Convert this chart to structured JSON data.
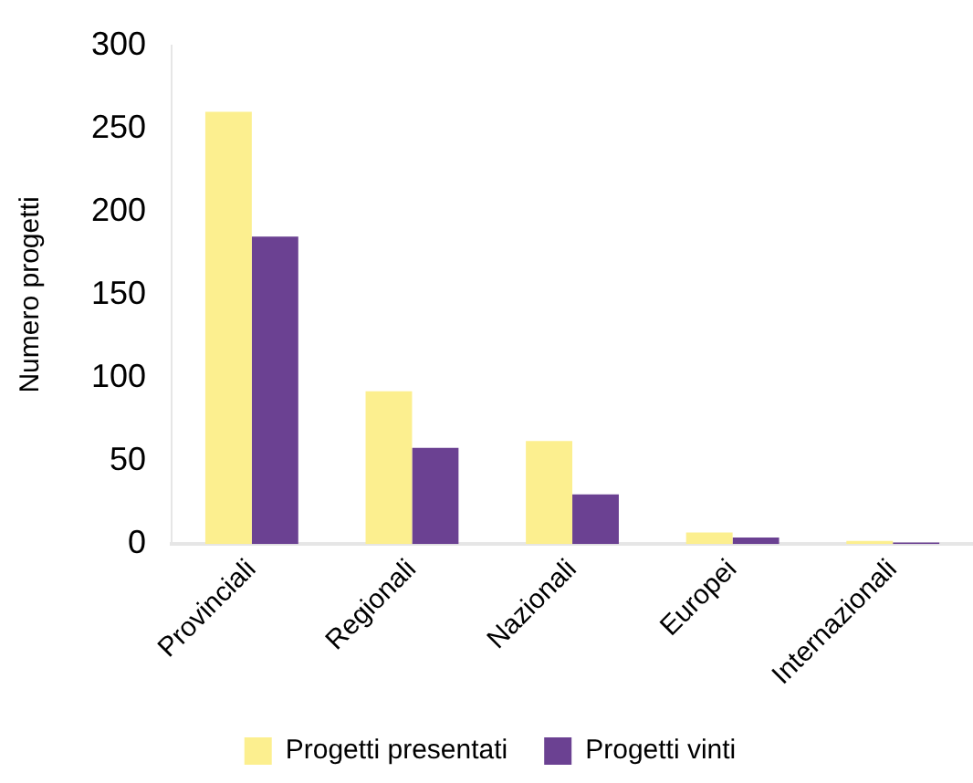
{
  "chart_data": {
    "type": "bar",
    "categories": [
      "Provinciali",
      "Regionali",
      "Nazionali",
      "Europei",
      "Internazionali"
    ],
    "series": [
      {
        "name": "Progetti presentati",
        "color": "#fcef8f",
        "values": [
          260,
          92,
          62,
          7,
          2
        ]
      },
      {
        "name": "Progetti vinti",
        "color": "#6b4192",
        "values": [
          185,
          58,
          30,
          4,
          1
        ]
      }
    ],
    "ylabel": "Numero progetti",
    "ylim": [
      0,
      300
    ],
    "yticks": [
      0,
      50,
      100,
      150,
      200,
      250,
      300
    ],
    "grid": false,
    "legend": "bottom"
  }
}
